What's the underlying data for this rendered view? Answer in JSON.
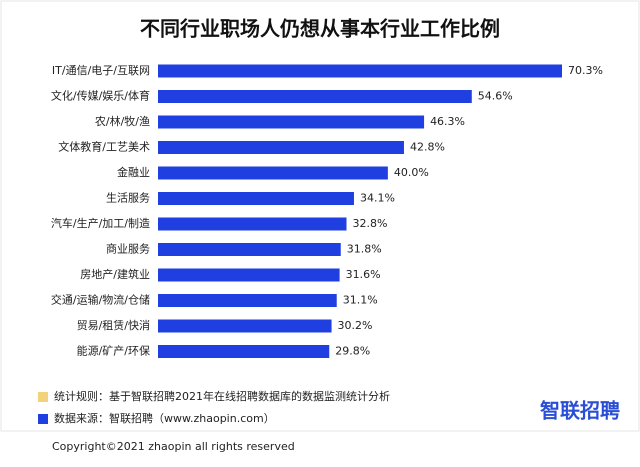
{
  "chart_data": {
    "type": "bar",
    "orientation": "horizontal",
    "title": "不同行业职场人仍想从事本行业工作比例",
    "categories": [
      "IT/通信/电子/互联网",
      "文化/传媒/娱乐/体育",
      "农/林/牧/渔",
      "文体教育/工艺美术",
      "金融业",
      "生活服务",
      "汽车/生产/加工/制造",
      "商业服务",
      "房地产/建筑业",
      "交通/运输/物流/仓储",
      "贸易/租赁/快消",
      "能源/矿产/环保"
    ],
    "values": [
      70.3,
      54.6,
      46.3,
      42.8,
      40.0,
      34.1,
      32.8,
      31.8,
      31.6,
      31.1,
      30.2,
      29.8
    ],
    "value_labels": [
      "70.3%",
      "54.6%",
      "46.3%",
      "42.8%",
      "40.0%",
      "34.1%",
      "32.8%",
      "31.8%",
      "31.6%",
      "31.1%",
      "30.2%",
      "29.8%"
    ],
    "color": "#1f3fe0"
  },
  "footer": {
    "notes": [
      {
        "text": "统计规则：基于智联招聘2021年在线招聘数据库的数据监测统计分析",
        "color": "#f2d27a"
      },
      {
        "text": "数据来源：智联招聘（www.zhaopin.com）",
        "color": "#1f3fe0"
      }
    ],
    "logo": "智联招聘",
    "copyright": "Copyright©2021 zhaopin  all rights reserved"
  }
}
